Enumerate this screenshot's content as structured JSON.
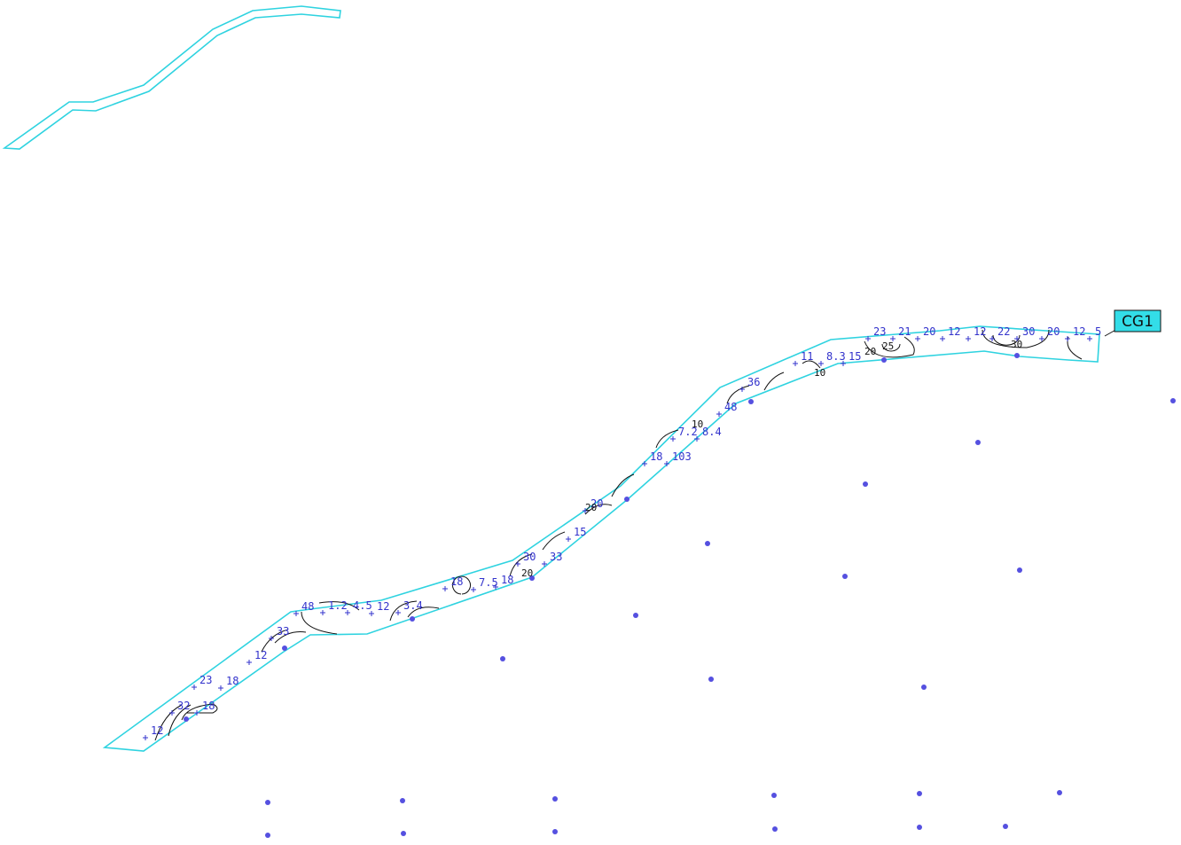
{
  "callout": {
    "label": "CG1"
  },
  "spot_heights": [
    "12",
    "23",
    "18",
    "32",
    "18",
    "33",
    "12",
    "48",
    "1.2",
    "4.5",
    "12",
    "3.4",
    "18",
    "7.5",
    "18",
    "30",
    "33",
    "15",
    "20",
    "18",
    "103",
    "7.2",
    "8.4",
    "48",
    "36",
    "11",
    "8.3",
    "15",
    "23",
    "21",
    "20",
    "12",
    "12",
    "22",
    "30",
    "20",
    "12",
    "5"
  ],
  "contour_labels": [
    "20",
    "25",
    "30",
    "20",
    "10",
    "10",
    "20"
  ]
}
